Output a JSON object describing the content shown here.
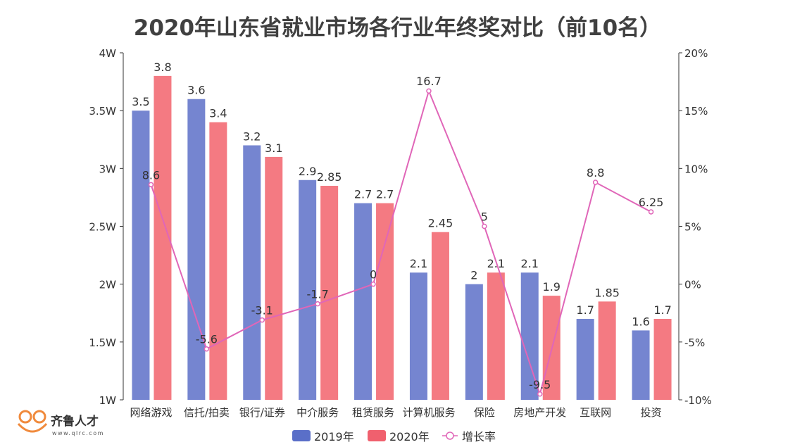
{
  "chart_data": {
    "type": "bar+line",
    "title": "2020年山东省就业市场各行业年终奖对比（前10名）",
    "categories": [
      "网络游戏",
      "信托/拍卖",
      "银行/证券",
      "中介服务",
      "租赁服务",
      "计算机服务",
      "保险",
      "房地产开发",
      "互联网",
      "投资"
    ],
    "series": [
      {
        "name": "2019年",
        "type": "bar",
        "axis": "left",
        "color": "#7585d0",
        "values": [
          3.5,
          3.6,
          3.2,
          2.9,
          2.7,
          2.1,
          2,
          2.1,
          1.7,
          1.6
        ]
      },
      {
        "name": "2020年",
        "type": "bar",
        "axis": "left",
        "color": "#f47a82",
        "values": [
          3.8,
          3.4,
          3.1,
          2.85,
          2.7,
          2.45,
          2.1,
          1.9,
          1.85,
          1.7
        ]
      },
      {
        "name": "增长率",
        "type": "line",
        "axis": "right",
        "color": "#e066b8",
        "values": [
          8.6,
          -5.6,
          -3.1,
          -1.7,
          0,
          16.7,
          5,
          -9.5,
          8.8,
          6.25
        ]
      }
    ],
    "left_axis": {
      "range": [
        1,
        4
      ],
      "ticks": [
        "1W",
        "1.5W",
        "2W",
        "2.5W",
        "3W",
        "3.5W",
        "4W"
      ]
    },
    "right_axis": {
      "range": [
        -10,
        20
      ],
      "ticks": [
        "-10%",
        "-5%",
        "0%",
        "5%",
        "10%",
        "15%",
        "20%"
      ]
    },
    "legend": {
      "placement": "bottom",
      "legend_colors": [
        "#5a6fc8",
        "#f0606e",
        "#e066b8"
      ]
    },
    "grid": false
  },
  "logo": {
    "name": "齐鲁人才",
    "url": "www.qlrc.com"
  }
}
